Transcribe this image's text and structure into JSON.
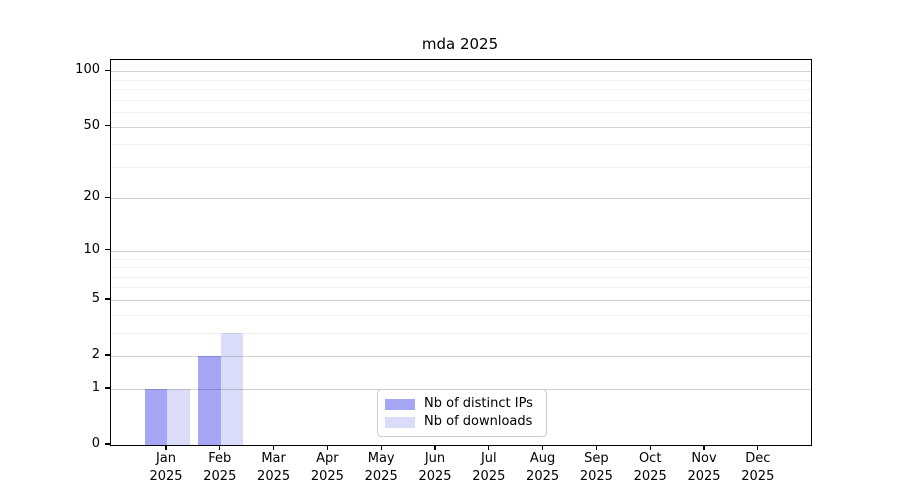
{
  "title": "mda 2025",
  "chart_data": {
    "type": "bar",
    "title": "mda 2025",
    "categories": [
      "Jan",
      "Feb",
      "Mar",
      "Apr",
      "May",
      "Jun",
      "Jul",
      "Aug",
      "Sep",
      "Oct",
      "Nov",
      "Dec"
    ],
    "year": "2025",
    "series": [
      {
        "name": "Nb of distinct IPs",
        "color": "#a6a6f7",
        "values": [
          1,
          2,
          0,
          0,
          0,
          0,
          0,
          0,
          0,
          0,
          0,
          0
        ]
      },
      {
        "name": "Nb of downloads",
        "color": "#dbdbfa",
        "values": [
          1,
          3,
          0,
          0,
          0,
          0,
          0,
          0,
          0,
          0,
          0,
          0
        ]
      }
    ],
    "xlabel": "",
    "ylabel": "",
    "yscale": "log1p",
    "ylim": [
      0,
      115
    ],
    "yticks_major": [
      0,
      1,
      2,
      5,
      10,
      20,
      50,
      100
    ],
    "yticks_minor": [
      3,
      4,
      6,
      7,
      8,
      9,
      30,
      40,
      60,
      70,
      80,
      90
    ],
    "grid": true,
    "legend": {
      "position": "lower-center-inside",
      "entries": [
        "Nb of distinct IPs",
        "Nb of downloads"
      ]
    },
    "colors": {
      "background": "#ffffff",
      "spine": "#000000",
      "major_grid": "#c9c9c9",
      "minor_grid": "#ededed"
    }
  }
}
